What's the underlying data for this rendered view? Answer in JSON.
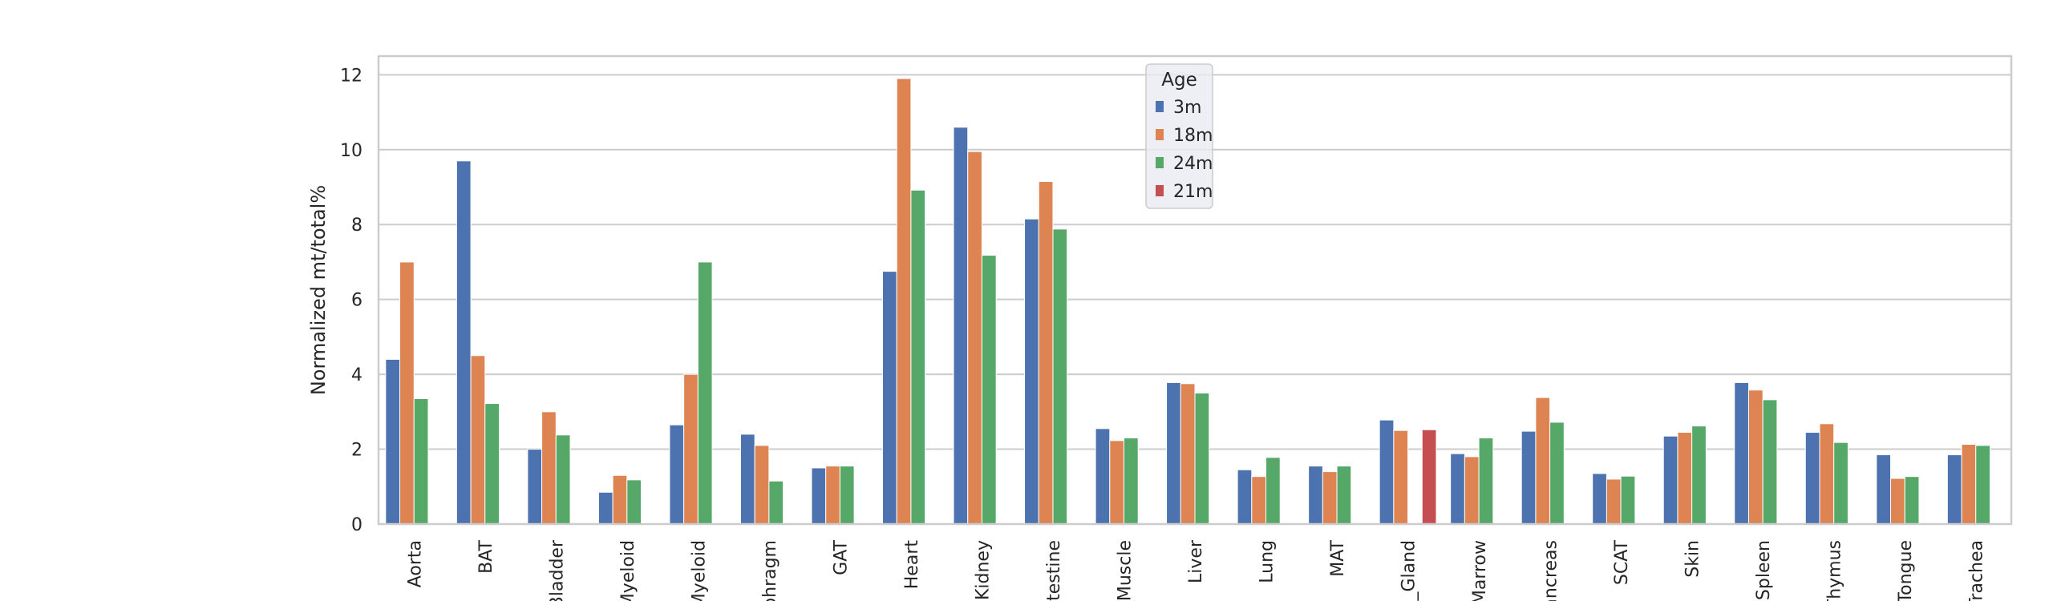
{
  "chart_data": {
    "type": "bar",
    "ylabel": "Normalized mt/total%",
    "xlabel": "",
    "ylim": [
      0,
      12.5
    ],
    "yticks": [
      0,
      2,
      4,
      6,
      8,
      10,
      12
    ],
    "grid": true,
    "legend": {
      "title": "Age",
      "placement": "top-center"
    },
    "categories": [
      "Aorta",
      "BAT",
      "Bladder",
      "Myeloid",
      "Myeloid",
      "phragm",
      "GAT",
      "Heart",
      "Kidney",
      "ntestine",
      "_Muscle",
      "Liver",
      "Lung",
      "MAT",
      "y_Gland",
      "Marrow",
      "ancreas",
      "SCAT",
      "Skin",
      "Spleen",
      "Thymus",
      "Tongue",
      "Trachea"
    ],
    "series": [
      {
        "name": "3m",
        "color": "#4c72b0",
        "values": [
          4.4,
          9.7,
          2.0,
          0.85,
          2.65,
          2.4,
          1.5,
          6.75,
          10.6,
          8.15,
          2.55,
          3.78,
          1.45,
          1.55,
          2.78,
          1.88,
          2.48,
          1.35,
          2.35,
          3.78,
          2.45,
          1.85,
          1.85
        ]
      },
      {
        "name": "18m",
        "color": "#dd8452",
        "values": [
          7.0,
          4.5,
          3.0,
          1.3,
          4.0,
          2.1,
          1.55,
          11.9,
          9.95,
          9.15,
          2.23,
          3.75,
          1.27,
          1.4,
          2.5,
          1.8,
          3.38,
          1.2,
          2.45,
          3.58,
          2.68,
          1.22,
          2.13
        ]
      },
      {
        "name": "24m",
        "color": "#55a868",
        "values": [
          3.35,
          3.22,
          2.38,
          1.18,
          7.0,
          1.15,
          1.55,
          8.92,
          7.18,
          7.88,
          2.3,
          3.5,
          1.78,
          1.55,
          null,
          2.3,
          2.72,
          1.28,
          2.62,
          3.32,
          2.18,
          1.27,
          2.1
        ]
      },
      {
        "name": "21m",
        "color": "#c44e52",
        "values": [
          null,
          null,
          null,
          null,
          null,
          null,
          null,
          null,
          null,
          null,
          null,
          null,
          null,
          null,
          2.52,
          null,
          null,
          null,
          null,
          null,
          null,
          null,
          null
        ]
      }
    ]
  }
}
